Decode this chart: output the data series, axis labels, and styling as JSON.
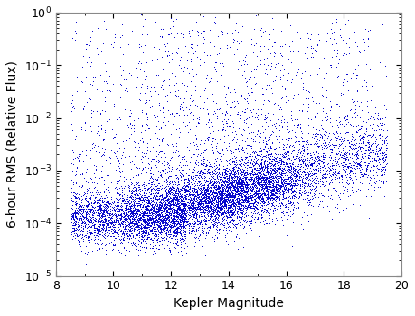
{
  "title": "",
  "xlabel": "Kepler Magnitude",
  "ylabel": "6-hour RMS (Relative Flux)",
  "xlim": [
    8,
    20
  ],
  "ylim": [
    1e-05,
    1.0
  ],
  "point_color": "#0000CC",
  "point_size": 2.0,
  "marker": ".",
  "n_points": 12000,
  "seed": 99
}
